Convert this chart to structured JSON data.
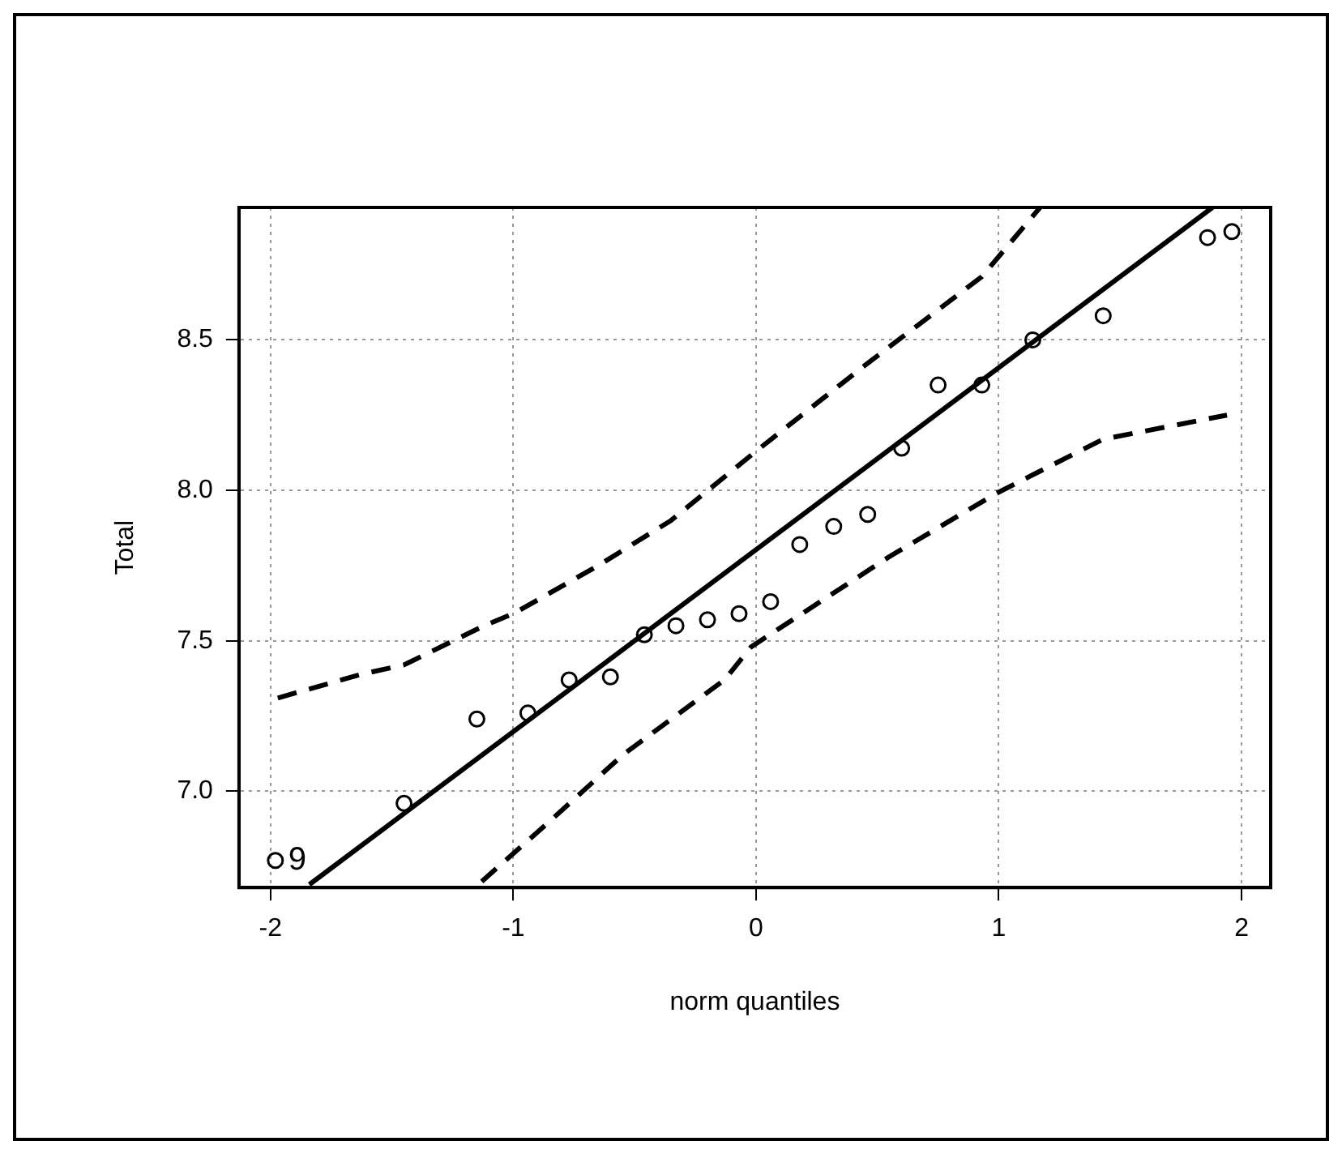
{
  "chart_data": {
    "type": "scatter",
    "xlabel": "norm quantiles",
    "ylabel": "Total",
    "xlim": [
      -2.13,
      2.12
    ],
    "ylim": [
      6.68,
      8.94
    ],
    "xticks": [
      -2,
      -1,
      0,
      1,
      2
    ],
    "yticks": [
      {
        "value": 7,
        "label": "7.0"
      },
      {
        "value": 7.5,
        "label": "7.5"
      },
      {
        "value": 8,
        "label": "8.0"
      },
      {
        "value": 8.5,
        "label": "8.5"
      }
    ],
    "grid": true,
    "marker": "circle",
    "series": [
      {
        "color": "#000000",
        "x": [
          -1.98,
          -1.45,
          -1.15,
          -0.94,
          -0.77,
          -0.6,
          -0.46,
          -0.33,
          -0.2,
          -0.07,
          0.06,
          0.18,
          0.32,
          0.46,
          0.6,
          0.75,
          0.93,
          1.14,
          1.43,
          1.86,
          1.96
        ],
        "values": [
          6.77,
          6.96,
          7.24,
          7.26,
          7.37,
          7.38,
          7.52,
          7.55,
          7.57,
          7.59,
          7.63,
          7.82,
          7.88,
          7.92,
          8.14,
          8.35,
          8.35,
          8.5,
          8.58,
          8.84,
          8.86
        ]
      },
      {
        "type": "line",
        "color": "#000000",
        "line_style": "solid",
        "marker": "none",
        "x": [
          -1.84,
          1.88
        ],
        "values": [
          6.69,
          8.94
        ]
      },
      {
        "type": "line",
        "color": "#000000",
        "line_style": "dashed",
        "marker": "none",
        "x": [
          -1.97,
          -1.62,
          -1.45,
          -1.12,
          -1.0,
          -0.65,
          -0.35,
          0.0,
          0.44,
          0.93,
          1.17
        ],
        "values": [
          7.31,
          7.39,
          7.42,
          7.55,
          7.59,
          7.75,
          7.9,
          8.13,
          8.41,
          8.71,
          8.94
        ]
      },
      {
        "type": "line",
        "color": "#000000",
        "line_style": "dashed",
        "marker": "none",
        "x": [
          -1.13,
          -0.85,
          -0.55,
          -0.13,
          -0.02,
          0.55,
          0.99,
          1.43,
          1.94
        ],
        "values": [
          6.7,
          6.9,
          7.12,
          7.37,
          7.48,
          7.78,
          7.99,
          8.17,
          8.25
        ]
      }
    ],
    "annotations": [
      {
        "text": "9",
        "x": -1.98,
        "y": 6.77
      }
    ]
  }
}
